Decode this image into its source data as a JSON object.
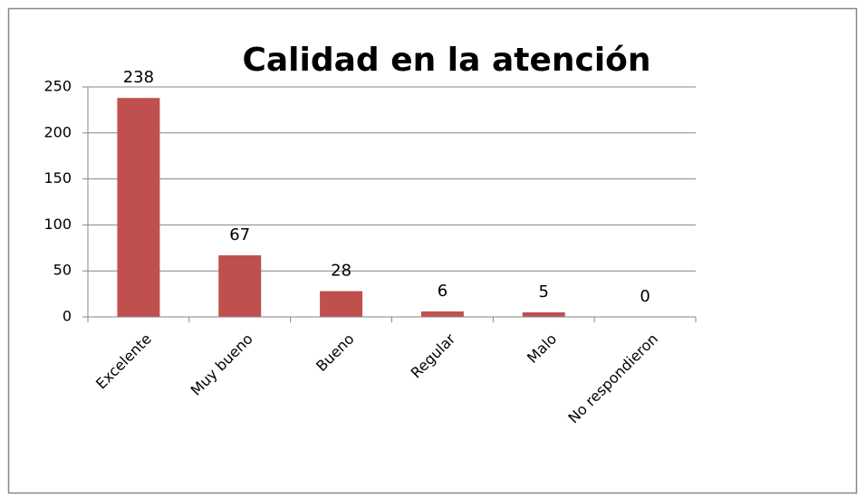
{
  "chart_data": {
    "type": "bar",
    "title": "Calidad en la atención",
    "categories": [
      "Excelente",
      "Muy bueno",
      "Bueno",
      "Regular",
      "Malo",
      "No respondieron"
    ],
    "values": [
      238,
      67,
      28,
      6,
      5,
      0
    ],
    "color": "#c0504d",
    "ylim": [
      0,
      250
    ],
    "yticks": [
      0,
      50,
      100,
      150,
      200,
      250
    ],
    "grid": true
  }
}
